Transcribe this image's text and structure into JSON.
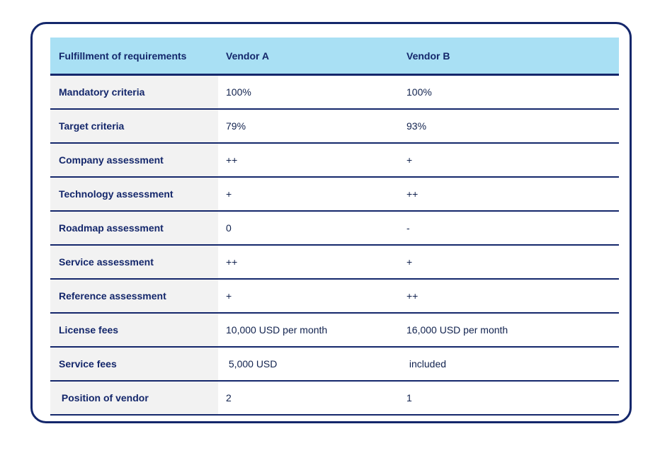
{
  "colors": {
    "border_navy": "#14276b",
    "header_bg": "#a9e0f4",
    "label_column_bg": "#f2f2f2",
    "label_text": "#14276b",
    "value_text": "#11224e"
  },
  "table": {
    "header": {
      "criteria": "Fulfillment of requirements",
      "vendor_a": "Vendor A",
      "vendor_b": "Vendor B"
    },
    "rows": [
      {
        "label": "Mandatory criteria",
        "vendor_a": "100%",
        "vendor_b": "100%"
      },
      {
        "label": "Target criteria",
        "vendor_a": "79%",
        "vendor_b": "93%"
      },
      {
        "label": "Company assessment",
        "vendor_a": "++",
        "vendor_b": "+"
      },
      {
        "label": "Technology assessment",
        "vendor_a": "+",
        "vendor_b": "++"
      },
      {
        "label": "Roadmap assessment",
        "vendor_a": "0",
        "vendor_b": "-"
      },
      {
        "label": "Service assessment",
        "vendor_a": "++",
        "vendor_b": "+"
      },
      {
        "label": "Reference assessment",
        "vendor_a": "+",
        "vendor_b": "++"
      },
      {
        "label": "License fees",
        "vendor_a": "10,000 USD per month",
        "vendor_b": "16,000 USD per month"
      },
      {
        "label": "Service fees",
        "vendor_a": " 5,000 USD",
        "vendor_b": " included"
      },
      {
        "label": " Position of vendor",
        "vendor_a": "2",
        "vendor_b": "1"
      }
    ]
  }
}
